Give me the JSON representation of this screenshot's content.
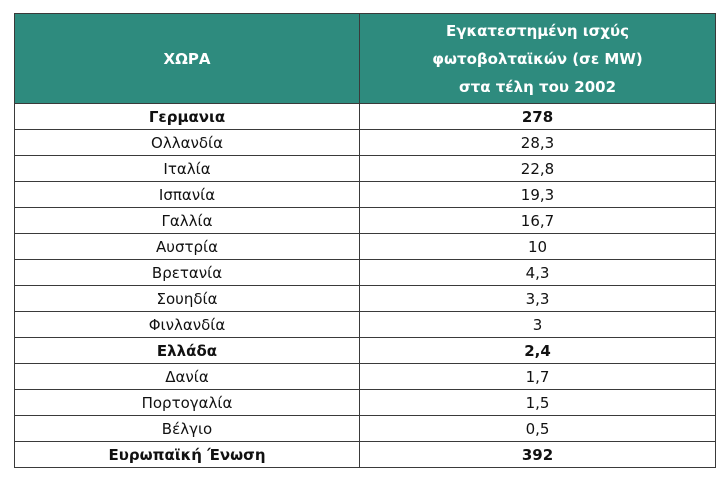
{
  "table": {
    "header": {
      "col1": "ΧΩΡΑ",
      "col2_lines": [
        "Εγκατεστημένη ισχύς",
        "φωτοβολταϊκών (σε MW)",
        "στα τέλη του 2002"
      ]
    },
    "rows": [
      {
        "country": "Γερμανια",
        "value": "278",
        "bold": true
      },
      {
        "country": "Ολλανδία",
        "value": "28,3",
        "bold": false
      },
      {
        "country": "Ιταλία",
        "value": "22,8",
        "bold": false
      },
      {
        "country": "Ισπανία",
        "value": "19,3",
        "bold": false
      },
      {
        "country": "Γαλλία",
        "value": "16,7",
        "bold": false
      },
      {
        "country": "Αυστρία",
        "value": "10",
        "bold": false
      },
      {
        "country": "Βρετανία",
        "value": "4,3",
        "bold": false
      },
      {
        "country": "Σουηδία",
        "value": "3,3",
        "bold": false
      },
      {
        "country": "Φινλανδία",
        "value": "3",
        "bold": false
      },
      {
        "country": "Ελλάδα",
        "value": "2,4",
        "bold": true
      },
      {
        "country": "Δανία",
        "value": "1,7",
        "bold": false
      },
      {
        "country": "Πορτογαλία",
        "value": "1,5",
        "bold": false
      },
      {
        "country": "Βέλγιο",
        "value": "0,5",
        "bold": false
      },
      {
        "country": "Ευρωπαϊκή Ένωση",
        "value": "392",
        "bold": true
      }
    ]
  },
  "colors": {
    "header_bg": "#2e8b7e",
    "header_text": "#ffffff",
    "border": "#3a3a3a"
  }
}
